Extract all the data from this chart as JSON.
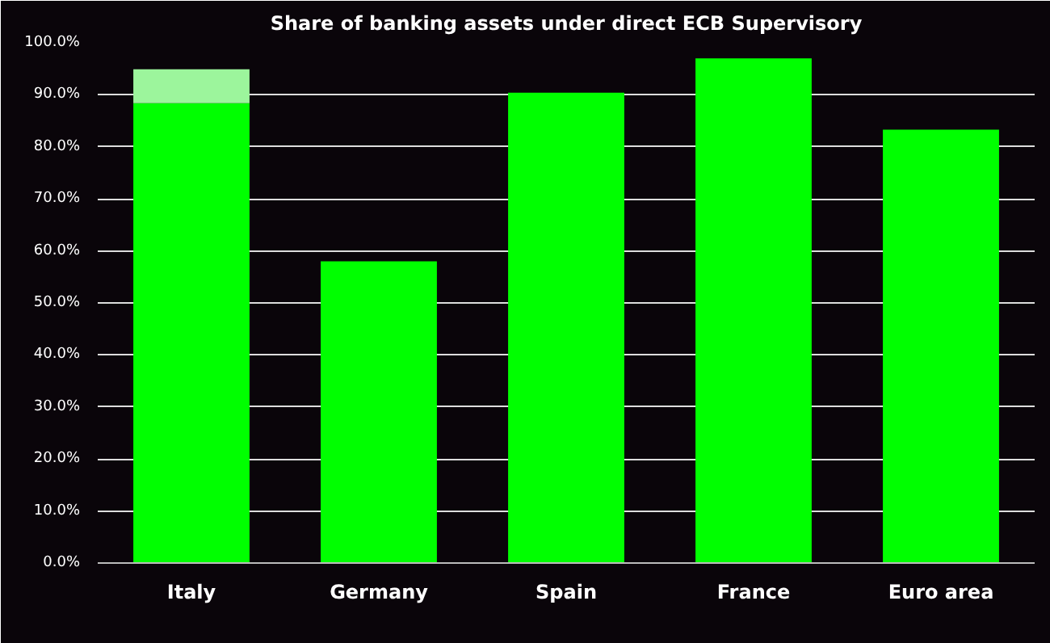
{
  "chart_data": {
    "type": "bar",
    "title": "Share of banking assets under direct ECB Supervisory",
    "categories": [
      "Italy",
      "Germany",
      "Spain",
      "France",
      "Euro area"
    ],
    "stacked": true,
    "series": [
      {
        "color": "#00ff00",
        "values": [
          88.4,
          58.0,
          90.4,
          97.0,
          83.3
        ]
      },
      {
        "color": "#9cf59c",
        "values": [
          6.5,
          null,
          null,
          null,
          null
        ]
      }
    ],
    "ylim": [
      0,
      100
    ],
    "yticks": [
      {
        "value": 0,
        "label": "0.0%"
      },
      {
        "value": 10,
        "label": "10.0%"
      },
      {
        "value": 20,
        "label": "20.0%"
      },
      {
        "value": 30,
        "label": "30.0%"
      },
      {
        "value": 40,
        "label": "40.0%"
      },
      {
        "value": 50,
        "label": "50.0%"
      },
      {
        "value": 60,
        "label": "60.0%"
      },
      {
        "value": 70,
        "label": "70.0%"
      },
      {
        "value": 80,
        "label": "80.0%"
      },
      {
        "value": 90,
        "label": "90.0%"
      },
      {
        "value": 100,
        "label": "100.0%"
      }
    ],
    "grid": "y"
  }
}
